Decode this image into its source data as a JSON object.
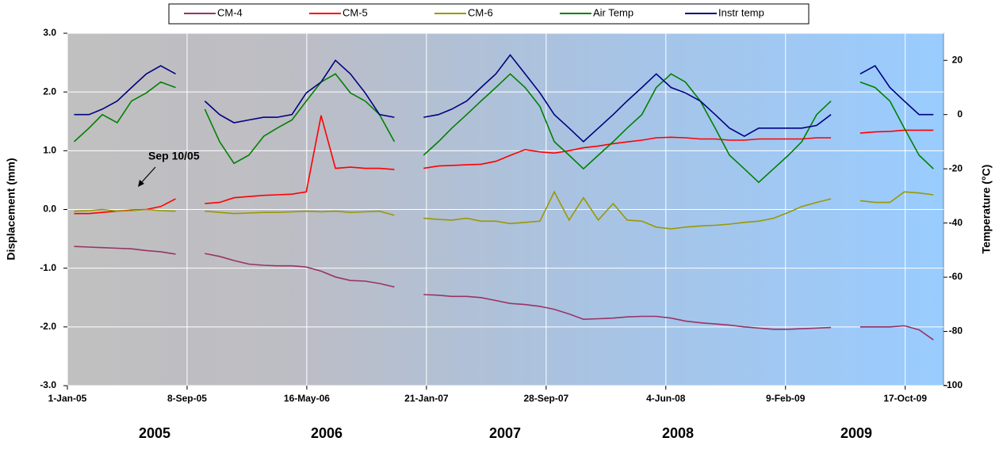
{
  "chart_data": {
    "type": "line",
    "annotation": "Sep 10/05",
    "y_label": "Displacement (mm)",
    "y2_label": "Temperature (°C)",
    "period_labels": [
      "2005",
      "2006",
      "2007",
      "2008",
      "2009"
    ],
    "x": [
      "2005-01-15",
      "2005-02-15",
      "2005-03-15",
      "2005-04-15",
      "2005-05-15",
      "2005-06-15",
      "2005-07-15",
      "2005-08-15",
      "2005-09-15",
      "2005-10-15",
      "2005-11-15",
      "2005-12-15",
      "2006-01-15",
      "2006-02-15",
      "2006-03-15",
      "2006-04-15",
      "2006-05-15",
      "2006-06-15",
      "2006-07-15",
      "2006-08-15",
      "2006-09-15",
      "2006-10-15",
      "2006-11-15",
      "2006-12-15",
      "2007-01-15",
      "2007-02-15",
      "2007-03-15",
      "2007-04-15",
      "2007-05-15",
      "2007-06-15",
      "2007-07-15",
      "2007-08-15",
      "2007-09-15",
      "2007-10-15",
      "2007-11-15",
      "2007-12-15",
      "2008-01-15",
      "2008-02-15",
      "2008-03-15",
      "2008-04-15",
      "2008-05-15",
      "2008-06-15",
      "2008-07-15",
      "2008-08-15",
      "2008-09-15",
      "2008-10-15",
      "2008-11-15",
      "2008-12-15",
      "2009-01-15",
      "2009-02-15",
      "2009-03-15",
      "2009-04-15",
      "2009-05-15",
      "2009-06-15",
      "2009-07-15",
      "2009-08-15",
      "2009-09-15",
      "2009-10-15",
      "2009-11-15",
      "2009-12-15"
    ],
    "xlim": [
      "2005-01-01",
      "2010-01-05"
    ],
    "xticks": [
      {
        "value": "2005-01-01",
        "label": "1-Jan-05"
      },
      {
        "value": "2005-09-08",
        "label": "8-Sep-05"
      },
      {
        "value": "2006-05-16",
        "label": "16-May-06"
      },
      {
        "value": "2007-01-21",
        "label": "21-Jan-07"
      },
      {
        "value": "2007-09-28",
        "label": "28-Sep-07"
      },
      {
        "value": "2008-06-04",
        "label": "4-Jun-08"
      },
      {
        "value": "2009-02-09",
        "label": "9-Feb-09"
      },
      {
        "value": "2009-10-17",
        "label": "17-Oct-09"
      }
    ],
    "ylim": [
      -3,
      3
    ],
    "yticks": [
      {
        "value": -3,
        "label": "-3.0"
      },
      {
        "value": -2,
        "label": "-2.0"
      },
      {
        "value": -1,
        "label": "-1.0"
      },
      {
        "value": 0,
        "label": "0.0"
      },
      {
        "value": 1,
        "label": "1.0"
      },
      {
        "value": 2,
        "label": "2.0"
      },
      {
        "value": 3,
        "label": "3.0"
      }
    ],
    "y2lim": [
      -100,
      30
    ],
    "y2ticks": [
      -100,
      -80,
      -60,
      -40,
      -20,
      0,
      20
    ],
    "grid": true,
    "legend": "top",
    "series": [
      {
        "name": "CM-4",
        "color": "#993366",
        "values": [
          -0.63,
          -0.64,
          -0.65,
          -0.66,
          -0.67,
          -0.7,
          -0.72,
          -0.76,
          null,
          -0.75,
          -0.8,
          -0.87,
          -0.93,
          -0.95,
          -0.96,
          -0.96,
          -0.98,
          -1.05,
          -1.15,
          -1.21,
          -1.22,
          -1.26,
          -1.32,
          null,
          -1.45,
          -1.46,
          -1.48,
          -1.48,
          -1.5,
          -1.55,
          -1.6,
          -1.62,
          -1.65,
          -1.7,
          -1.78,
          -1.87,
          -1.86,
          -1.85,
          -1.83,
          -1.82,
          -1.82,
          -1.85,
          -1.9,
          -1.93,
          -1.95,
          -1.97,
          -2.0,
          -2.02,
          -2.04,
          -2.04,
          -2.03,
          -2.02,
          -2.01,
          null,
          -2.0,
          -2.0,
          -2.0,
          -1.98,
          -2.05,
          -2.22
        ]
      },
      {
        "name": "CM-5",
        "color": "#ff0000",
        "values": [
          -0.07,
          -0.07,
          -0.05,
          -0.03,
          -0.01,
          0.0,
          0.05,
          0.18,
          null,
          0.1,
          0.12,
          0.2,
          0.22,
          0.24,
          0.25,
          0.26,
          0.3,
          1.6,
          0.7,
          0.72,
          0.7,
          0.7,
          0.68,
          null,
          0.7,
          0.74,
          0.75,
          0.76,
          0.77,
          0.82,
          0.92,
          1.02,
          0.98,
          0.96,
          1.0,
          1.05,
          1.08,
          1.12,
          1.15,
          1.18,
          1.22,
          1.23,
          1.22,
          1.2,
          1.2,
          1.18,
          1.18,
          1.2,
          1.2,
          1.2,
          1.2,
          1.22,
          1.22,
          null,
          1.3,
          1.32,
          1.33,
          1.35,
          1.35,
          1.35
        ]
      },
      {
        "name": "CM-6",
        "color": "#999900",
        "values": [
          -0.03,
          -0.02,
          0.0,
          -0.03,
          -0.02,
          0.0,
          -0.02,
          -0.03,
          null,
          -0.03,
          -0.05,
          -0.07,
          -0.06,
          -0.05,
          -0.05,
          -0.04,
          -0.03,
          -0.04,
          -0.03,
          -0.05,
          -0.04,
          -0.03,
          -0.1,
          null,
          -0.15,
          -0.17,
          -0.18,
          -0.15,
          -0.2,
          -0.2,
          -0.24,
          -0.22,
          -0.2,
          0.3,
          -0.18,
          0.2,
          -0.18,
          0.1,
          -0.18,
          -0.2,
          -0.3,
          -0.33,
          -0.3,
          -0.28,
          -0.27,
          -0.25,
          -0.22,
          -0.2,
          -0.15,
          -0.05,
          0.05,
          0.12,
          0.18,
          null,
          0.15,
          0.12,
          0.12,
          0.3,
          0.28,
          0.25
        ]
      },
      {
        "name": "Air Temp",
        "color": "#008000",
        "axis": "y2",
        "values": [
          -10,
          -5,
          0,
          -3,
          5,
          8,
          12,
          10,
          null,
          2,
          -10,
          -18,
          -15,
          -8,
          -5,
          -2,
          5,
          12,
          15,
          8,
          5,
          0,
          -10,
          null,
          -15,
          -10,
          -5,
          0,
          5,
          10,
          15,
          10,
          3,
          -10,
          -15,
          -20,
          -15,
          -10,
          -5,
          0,
          10,
          15,
          12,
          5,
          -5,
          -15,
          -20,
          -25,
          -20,
          -15,
          -10,
          0,
          5,
          null,
          12,
          10,
          5,
          -5,
          -15,
          -20
        ]
      },
      {
        "name": "Instr temp",
        "color": "#000080",
        "axis": "y2",
        "values": [
          0,
          0,
          2,
          5,
          10,
          15,
          18,
          15,
          null,
          5,
          0,
          -3,
          -2,
          -1,
          -1,
          0,
          8,
          12,
          20,
          15,
          8,
          0,
          -1,
          null,
          -1,
          0,
          2,
          5,
          10,
          15,
          22,
          15,
          8,
          0,
          -5,
          -10,
          -5,
          0,
          5,
          10,
          15,
          10,
          8,
          5,
          0,
          -5,
          -8,
          -5,
          -5,
          -5,
          -5,
          -4,
          0,
          null,
          15,
          18,
          10,
          5,
          0,
          0
        ]
      }
    ]
  }
}
